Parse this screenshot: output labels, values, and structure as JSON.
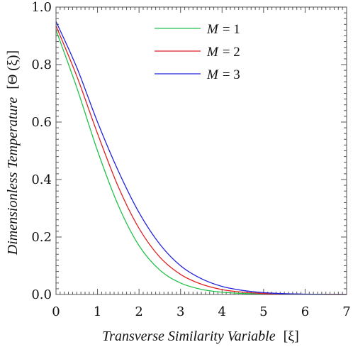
{
  "chart_data": {
    "type": "line",
    "xlabel_text": "Transverse Similarity Variable",
    "xlabel_symbol": "[ξ]",
    "ylabel_text": "Dimensionless Temperature",
    "ylabel_symbol": "[Θ (ξ)]",
    "xlim": [
      0,
      7
    ],
    "ylim": [
      0,
      1.0
    ],
    "xticks": [
      0,
      1,
      2,
      3,
      4,
      5,
      6,
      7
    ],
    "xtick_labels": [
      "0",
      "1",
      "2",
      "3",
      "4",
      "5",
      "6",
      "7"
    ],
    "yticks": [
      0,
      0.2,
      0.4,
      0.6,
      0.8,
      1.0
    ],
    "ytick_labels": [
      "0.0",
      "0.2",
      "0.4",
      "0.6",
      "0.8",
      "1.0"
    ],
    "grid": false,
    "legend_position": "top-right",
    "x": [
      0,
      0.5,
      1,
      1.5,
      2,
      2.5,
      3,
      3.5,
      4,
      4.5,
      5,
      5.5,
      6,
      6.5,
      7
    ],
    "series": [
      {
        "legend_var": "M",
        "legend_value": "= 1",
        "color": "#22c14a",
        "values": [
          0.92,
          0.72,
          0.5,
          0.31,
          0.17,
          0.085,
          0.04,
          0.018,
          0.008,
          0.0035,
          0.0015,
          0.0007,
          0.0003,
          0.0001,
          0.0
        ]
      },
      {
        "legend_var": "M",
        "legend_value": "= 2",
        "color": "#e02020",
        "values": [
          0.935,
          0.76,
          0.56,
          0.375,
          0.23,
          0.13,
          0.07,
          0.036,
          0.017,
          0.008,
          0.0035,
          0.0015,
          0.0006,
          0.0002,
          0.0
        ]
      },
      {
        "legend_var": "M",
        "legend_value": "= 3",
        "color": "#2222dd",
        "values": [
          0.95,
          0.79,
          0.6,
          0.43,
          0.285,
          0.175,
          0.1,
          0.055,
          0.028,
          0.014,
          0.0065,
          0.003,
          0.0012,
          0.0004,
          0.0
        ]
      }
    ]
  }
}
